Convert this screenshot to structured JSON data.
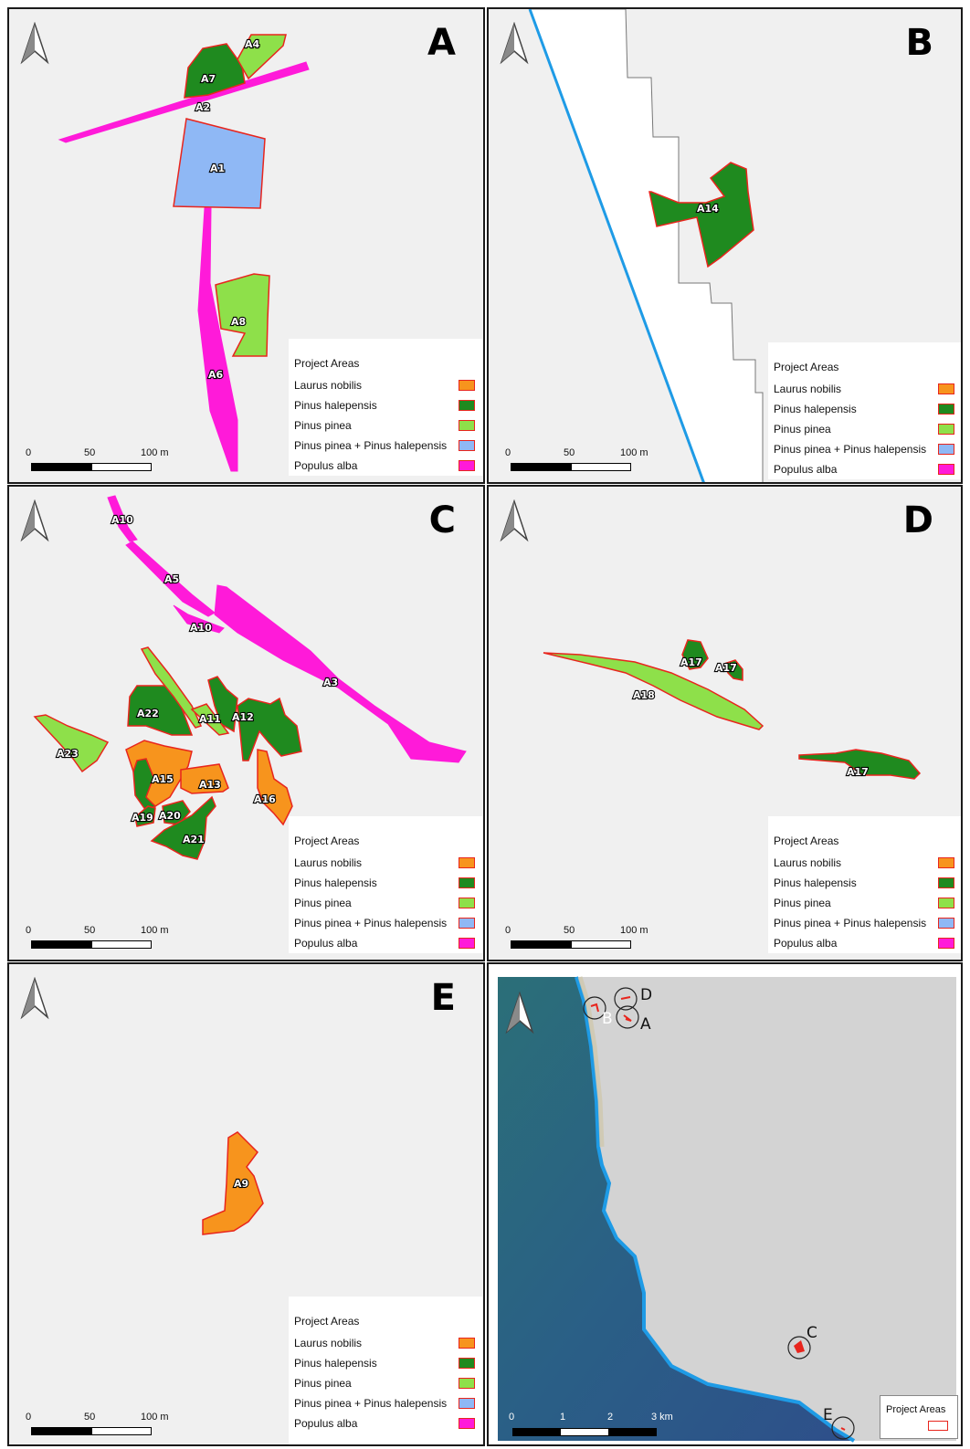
{
  "panels": [
    {
      "letter": "A",
      "labels": [
        "A7",
        "A4",
        "A2",
        "A1",
        "A8",
        "A6"
      ]
    },
    {
      "letter": "B",
      "labels": [
        "A14"
      ]
    },
    {
      "letter": "C",
      "labels": [
        "A10",
        "A5",
        "A10",
        "A3",
        "A22",
        "A11",
        "A12",
        "A23",
        "A15",
        "A13",
        "A16",
        "A19",
        "A20",
        "A21"
      ]
    },
    {
      "letter": "D",
      "labels": [
        "A17",
        "A17",
        "A18",
        "A17"
      ]
    },
    {
      "letter": "E",
      "labels": [
        "A9"
      ]
    }
  ],
  "legend": {
    "title": "Project Areas",
    "items": [
      {
        "label": "Laurus nobilis",
        "color": "#f7941d"
      },
      {
        "label": "Pinus halepensis",
        "color": "#1f8a1f"
      },
      {
        "label": "Pinus pinea",
        "color": "#8ee04a"
      },
      {
        "label": "Pinus pinea + Pinus halepensis",
        "color": "#8fb8f5"
      },
      {
        "label": "Populus alba",
        "color": "#ff1ad9"
      }
    ]
  },
  "scale": {
    "t0": "0",
    "t1": "50",
    "t2": "100 m"
  },
  "overview": {
    "sites": [
      "B",
      "D",
      "A",
      "C",
      "E"
    ],
    "legend_title": "Project Areas",
    "scale": {
      "t0": "0",
      "t1": "1",
      "t2": "2",
      "t3": "3 km"
    }
  },
  "colors": {
    "outline": "#e8251d",
    "background": "#f0f0f0",
    "coast": "#1e9be6"
  }
}
